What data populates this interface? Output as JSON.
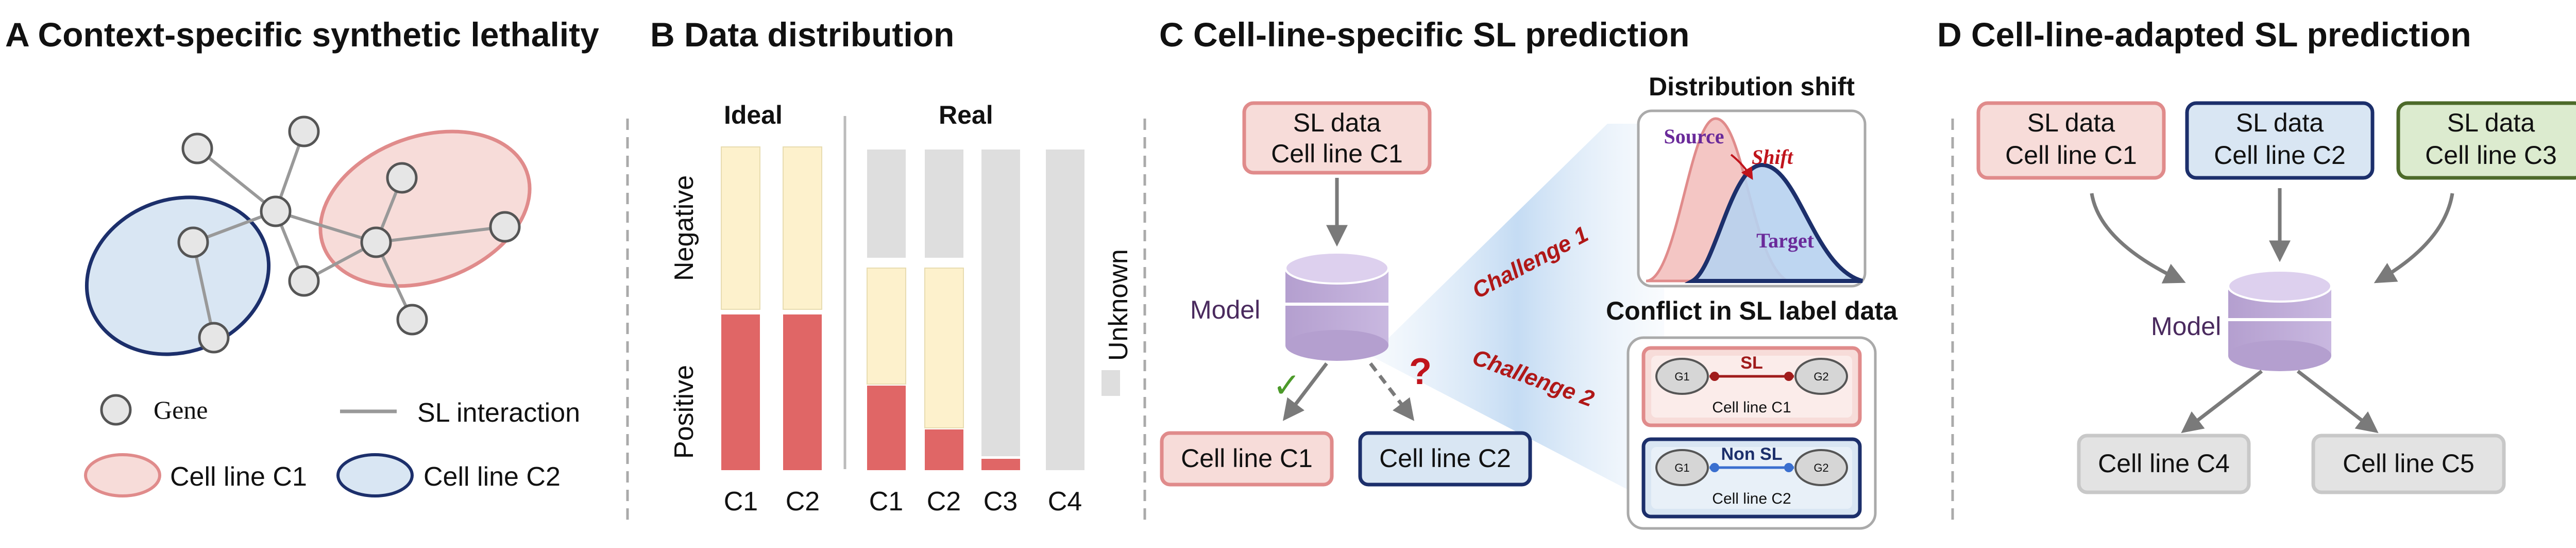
{
  "panel_a": {
    "title": "A Context-specific synthetic lethality",
    "legend": {
      "gene": "Gene",
      "interaction": "SL interaction",
      "c1": "Cell line C1",
      "c2": "Cell line C2"
    },
    "colors": {
      "c1_fill": "#f7dcd9",
      "c1_stroke": "#e08b8b",
      "c2_fill": "#d9e6f3",
      "c2_stroke": "#1c2f6b"
    }
  },
  "panel_b": {
    "title": "B   Data distribution",
    "ideal_label": "Ideal",
    "real_label": "Real",
    "negative_label": "Negative",
    "positive_label": "Positive",
    "unknown_label": "Unknown",
    "ideal_columns": [
      "C1",
      "C2"
    ],
    "real_columns": [
      "C1",
      "C2",
      "C3",
      "C4"
    ],
    "colors": {
      "positive": "#e06666",
      "negative": "#fdf1cc",
      "unknown": "#dedede"
    }
  },
  "panel_c": {
    "title": "C     Cell-line-specific SL prediction",
    "source_box": [
      "SL data",
      "Cell line C1"
    ],
    "model_label": "Model",
    "out_c1": "Cell line C1",
    "out_c2": "Cell line C2",
    "check_mark": "✓",
    "question_mark": "?",
    "challenge_1": "Challenge 1",
    "challenge_2": "Challenge 2",
    "dist_title": "Distribution shift",
    "dist_source": "Source",
    "dist_shift": "Shift",
    "dist_target": "Target",
    "conflict_title": "Conflict in SL label data",
    "conflict_rows": [
      {
        "g1": "G1",
        "g2": "G2",
        "relation": "SL",
        "cell_line": "Cell line C1"
      },
      {
        "g1": "G1",
        "g2": "G2",
        "relation": "Non SL",
        "cell_line": "Cell line C2"
      }
    ]
  },
  "panel_d": {
    "title": "D      Cell-line-adapted SL  prediction",
    "sources": [
      {
        "line1": "SL data",
        "line2": "Cell line C1"
      },
      {
        "line1": "SL data",
        "line2": "Cell line C2"
      },
      {
        "line1": "SL data",
        "line2": "Cell line C3"
      }
    ],
    "model_label": "Model",
    "outputs": [
      "Cell line C4",
      "Cell line C5"
    ]
  }
}
